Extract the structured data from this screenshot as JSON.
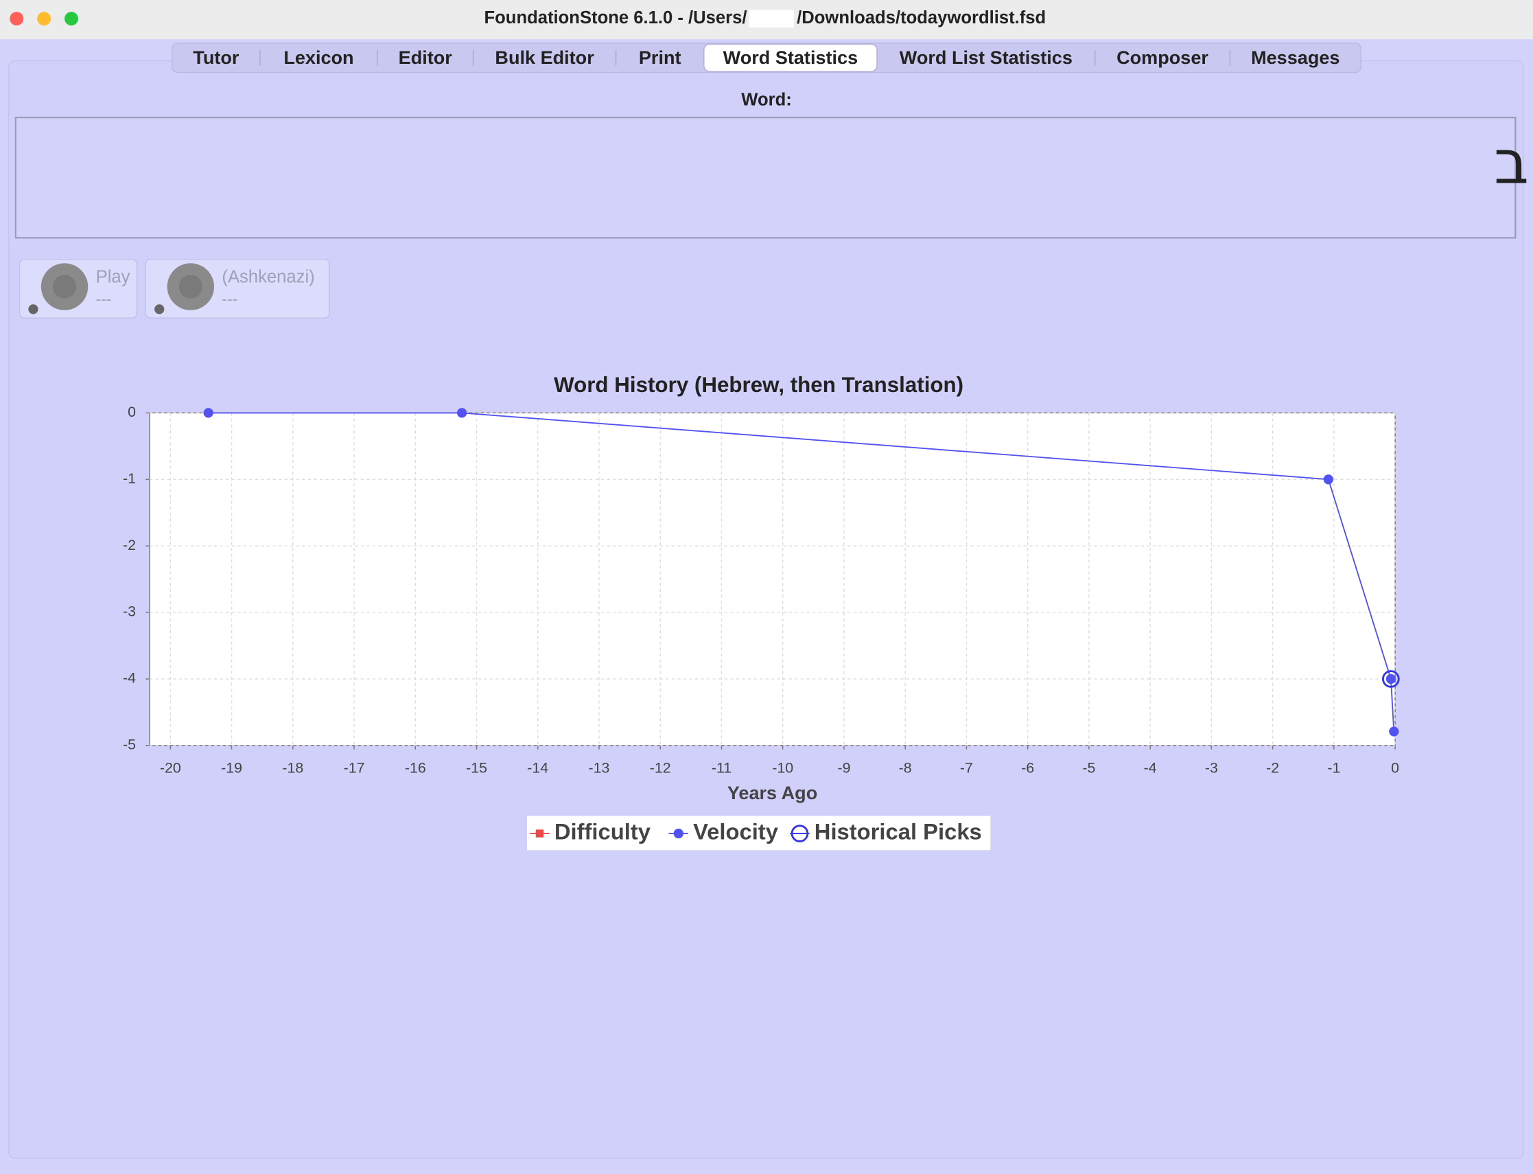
{
  "window": {
    "title_start": "FoundationStone 6.1.0 - /Users/",
    "title_end": "/Downloads/todaywordlist.fsd"
  },
  "tabs": [
    "Tutor",
    "Lexicon",
    "Editor",
    "Bulk Editor",
    "Print",
    "Word Statistics",
    "Word List Statistics",
    "Composer",
    "Messages"
  ],
  "selected_tab": 5,
  "word_panel": {
    "label": "Word:",
    "word": "הִתְאַהֵב ב"
  },
  "buttons": [
    {
      "label": "Play",
      "sub": "---"
    },
    {
      "label": "(Ashkenazi)",
      "sub": "---"
    }
  ],
  "chart_data": {
    "type": "line",
    "title": "Word History  (Hebrew, then Translation)",
    "x_label": "Years Ago",
    "xlim": [
      -20.34,
      0
    ],
    "ylim": [
      -5,
      0
    ],
    "xticks": [
      -20,
      -19,
      -18,
      -17,
      -16,
      -15,
      -14,
      -13,
      -12,
      -11,
      -10,
      -9,
      -8,
      -7,
      -6,
      -5,
      -4,
      -3,
      -2,
      -1,
      0
    ],
    "yticks": [
      0,
      -1,
      -2,
      -3,
      -4,
      -5
    ],
    "grid": true,
    "series": [
      {
        "name": "Difficulty",
        "color": "#f04848",
        "marker": "square",
        "x": [],
        "values": []
      },
      {
        "name": "Velocity",
        "color": "#5252f2",
        "marker": "dot",
        "x": [
          -19.38,
          -15.24,
          -1.09,
          -0.07,
          -0.02
        ],
        "values": [
          0,
          0,
          -1,
          -4,
          -4.79
        ]
      },
      {
        "name": "Historical Picks",
        "color": "#3434e6",
        "marker": "ring",
        "x": [
          -0.07
        ],
        "values": [
          -4
        ]
      }
    ]
  }
}
